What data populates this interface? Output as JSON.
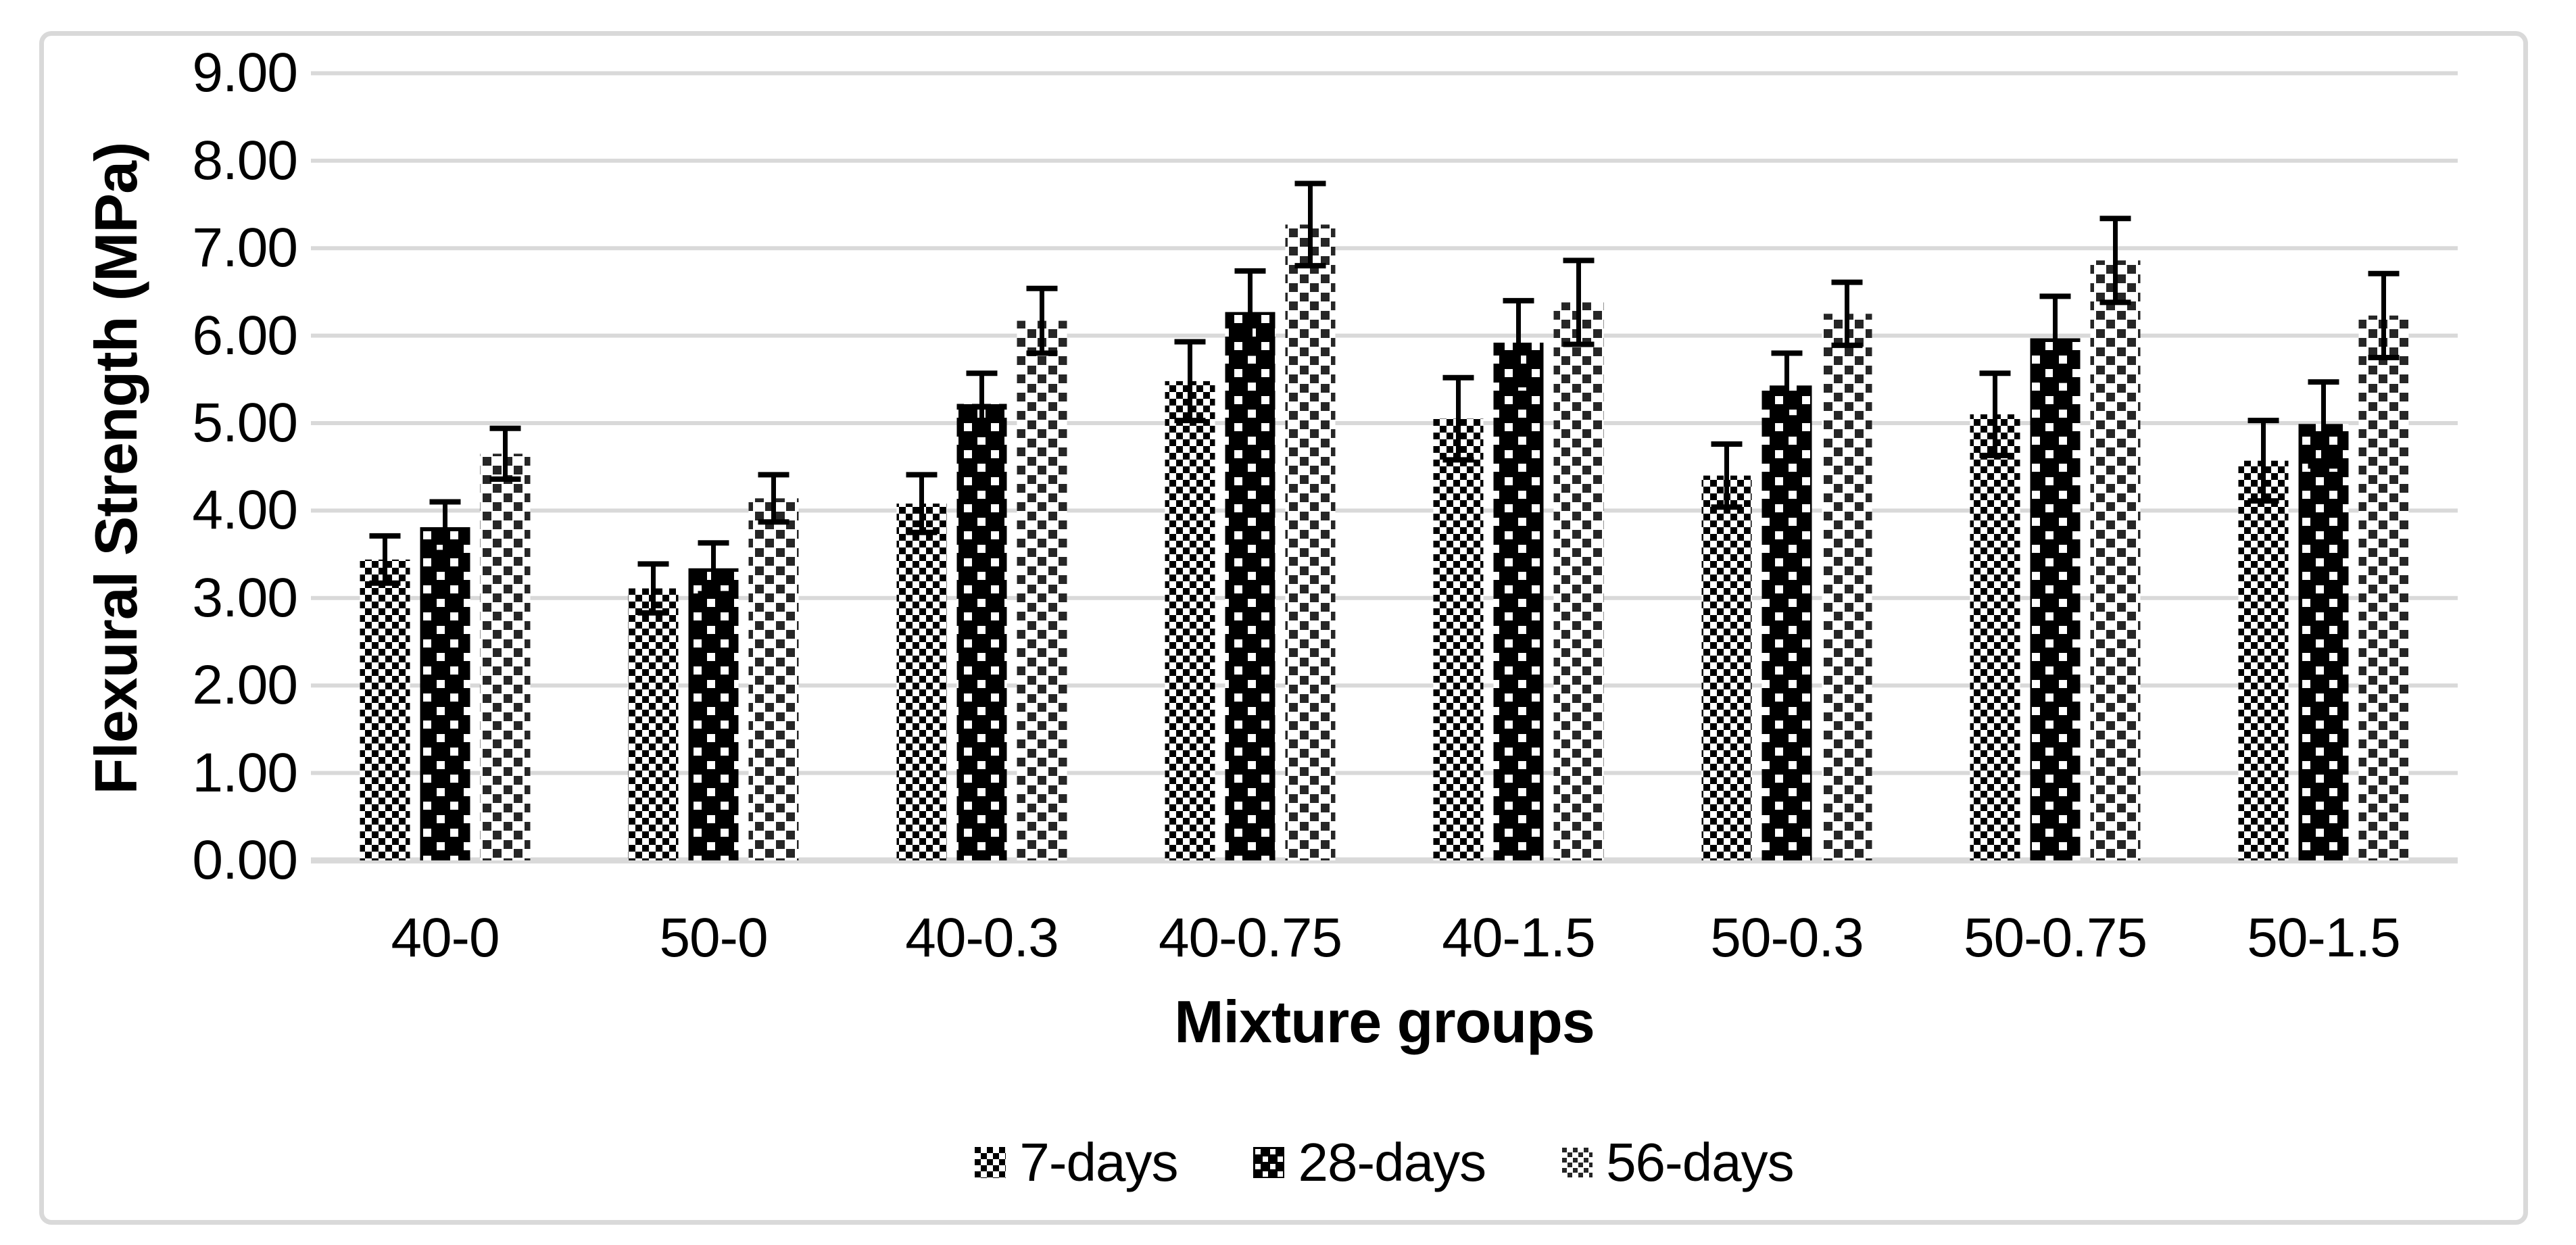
{
  "figure": {
    "background": "#ffffff",
    "frame_color": "#d9d9d9"
  },
  "chart_data": {
    "type": "bar",
    "title": "",
    "xlabel": "Mixture groups",
    "ylabel": "Flexural Strength (MPa)",
    "categories": [
      "40-0",
      "50-0",
      "40-0.3",
      "40-0.75",
      "40-1.5",
      "50-0.3",
      "50-0.75",
      "50-1.5"
    ],
    "series": [
      {
        "name": "7-days",
        "pattern": "checkerboard",
        "values": [
          3.44,
          3.11,
          4.08,
          5.48,
          5.05,
          4.4,
          5.1,
          4.57
        ],
        "errors": [
          0.27,
          0.28,
          0.33,
          0.45,
          0.47,
          0.36,
          0.47,
          0.46
        ]
      },
      {
        "name": "28-days",
        "pattern": "black-white-dots",
        "values": [
          3.81,
          3.34,
          5.22,
          6.27,
          5.92,
          5.43,
          5.97,
          4.99
        ],
        "errors": [
          0.29,
          0.29,
          0.35,
          0.47,
          0.48,
          0.37,
          0.48,
          0.48
        ]
      },
      {
        "name": "56-days",
        "pattern": "dotted-columns",
        "values": [
          4.65,
          4.14,
          6.17,
          7.27,
          6.38,
          6.25,
          6.86,
          6.23
        ],
        "errors": [
          0.29,
          0.27,
          0.37,
          0.47,
          0.48,
          0.36,
          0.48,
          0.48
        ]
      }
    ],
    "ylim": [
      0,
      9
    ],
    "y_tick_step": 1,
    "y_tick_labels": [
      "0.00",
      "1.00",
      "2.00",
      "3.00",
      "4.00",
      "5.00",
      "6.00",
      "7.00",
      "8.00",
      "9.00"
    ],
    "grid": true,
    "gridline_color": "#d9d9d9",
    "bar_color": "#000000",
    "error_bar_color": "#000000",
    "legend_position": "bottom"
  }
}
